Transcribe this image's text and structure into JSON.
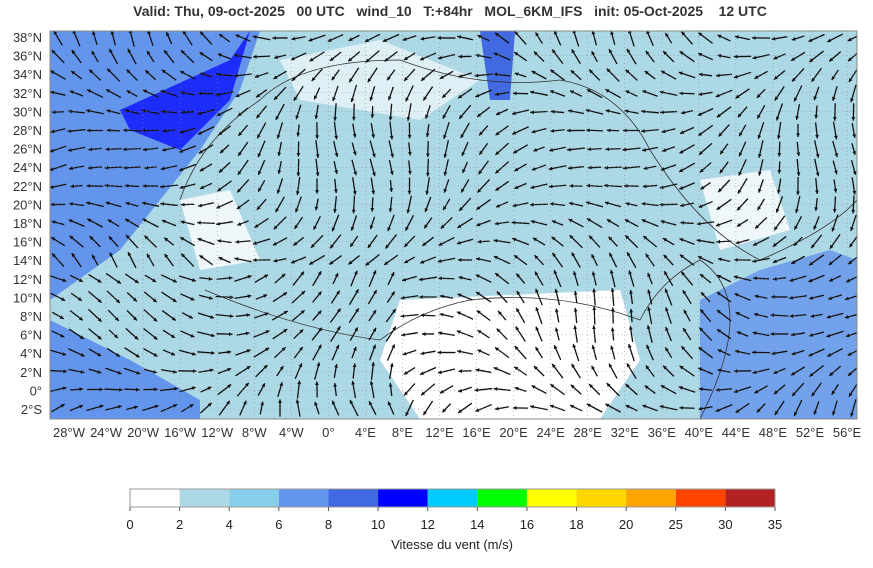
{
  "title": "Valid: Thu, 09-oct-2025   00 UTC   wind_10   T:+84hr   MOL_6KM_IFS   init: 05-Oct-2025    12 UTC",
  "map": {
    "lat_labels": [
      "38°N",
      "36°N",
      "34°N",
      "32°N",
      "30°N",
      "28°N",
      "26°N",
      "24°N",
      "22°N",
      "20°N",
      "18°N",
      "16°N",
      "14°N",
      "12°N",
      "10°N",
      "8°N",
      "6°N",
      "4°N",
      "2°N",
      "0°",
      "2°S"
    ],
    "lon_labels": [
      "28°W",
      "24°W",
      "20°W",
      "16°W",
      "12°W",
      "8°W",
      "4°W",
      "0°",
      "4°E",
      "8°E",
      "12°E",
      "16°E",
      "20°E",
      "24°E",
      "28°E",
      "32°E",
      "36°E",
      "40°E",
      "44°E",
      "48°E",
      "52°E",
      "56°E"
    ]
  },
  "colorbar": {
    "ticks": [
      0,
      2,
      4,
      6,
      8,
      10,
      12,
      14,
      16,
      18,
      20,
      25,
      30,
      35
    ],
    "colors": [
      "#ffffff",
      "#add8e6",
      "#87ceeb",
      "#6495ed",
      "#4169e1",
      "#0000ff",
      "#00ccff",
      "#00ff00",
      "#ffff00",
      "#ffd700",
      "#ffa500",
      "#ff4500",
      "#b22222"
    ],
    "label": "Vitesse du vent (m/s)"
  }
}
